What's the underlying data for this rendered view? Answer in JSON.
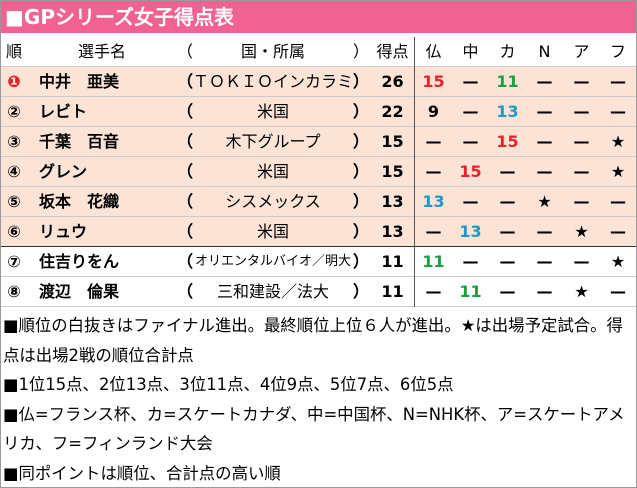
{
  "title": "■GPシリーズ女子得点表",
  "header": [
    "順",
    "選手名",
    "（",
    "国・所属",
    "）",
    "得点",
    "仏",
    "中",
    "カ",
    "N",
    "ア",
    "フ"
  ],
  "rows": [
    {
      "background": "#fbe3d6",
      "cells": [
        "❶",
        "中井　亜美",
        "（",
        "ＴＯＫＩＯインカラミ",
        "）",
        "26",
        "15",
        "—",
        "11",
        "—",
        "—",
        "—"
      ]
    },
    {
      "background": "#fbe3d6",
      "cells": [
        "②",
        "レビト",
        "（",
        "米国",
        "）",
        "22",
        "9",
        "—",
        "13",
        "—",
        "—",
        "—"
      ]
    },
    {
      "background": "#fbe3d6",
      "cells": [
        "③",
        "千葉　百音",
        "（",
        "木下グループ",
        "）",
        "15",
        "—",
        "—",
        "15",
        "—",
        "—",
        "★"
      ]
    },
    {
      "background": "#fbe3d6",
      "cells": [
        "④",
        "グレン",
        "（",
        "米国",
        "）",
        "15",
        "—",
        "15",
        "—",
        "—",
        "—",
        "★"
      ]
    },
    {
      "background": "#fbe3d6",
      "cells": [
        "⑤",
        "坂本　花織",
        "（",
        "シスメックス",
        "）",
        "13",
        "13",
        "—",
        "—",
        "★",
        "—",
        "—"
      ]
    },
    {
      "background": "#fbe3d6",
      "cells": [
        "⑥",
        "リュウ",
        "（",
        "米国",
        "）",
        "13",
        "—",
        "13",
        "—",
        "—",
        "★",
        "—"
      ]
    },
    {
      "background": "#ffffff",
      "cells": [
        "⑦",
        "住吉りをん",
        "（",
        "オリエンタルバイオ／明大",
        "）",
        "11",
        "11",
        "—",
        "—",
        "—",
        "—",
        "★"
      ]
    },
    {
      "background": "#ffffff",
      "cells": [
        "⑧",
        "渡辺　倫果",
        "（",
        "三和建設／法大",
        "）",
        "11",
        "—",
        "11",
        "—",
        "—",
        "★",
        "—"
      ]
    }
  ],
  "value_colors": {
    "15": "#e8212b",
    "13": "#2196c9",
    "11": "#1aa040",
    "❶": "#e8212b"
  },
  "notes": [
    "■順位の白抜きはファイナル進出。最終順位上位６人が進出。★は出場予定試合。得点は出場2戦の順位合計点",
    "■1位15点、2位13点、3位11点、4位9点、5位7点、6位5点",
    "■仏=フランス杯、カ=スケートカナダ、中=中国杯、N=NHK杯、ア=スケートアメリカ、フ=フィンランド大会",
    "■同ポイントは順位、合計点の高い順"
  ]
}
